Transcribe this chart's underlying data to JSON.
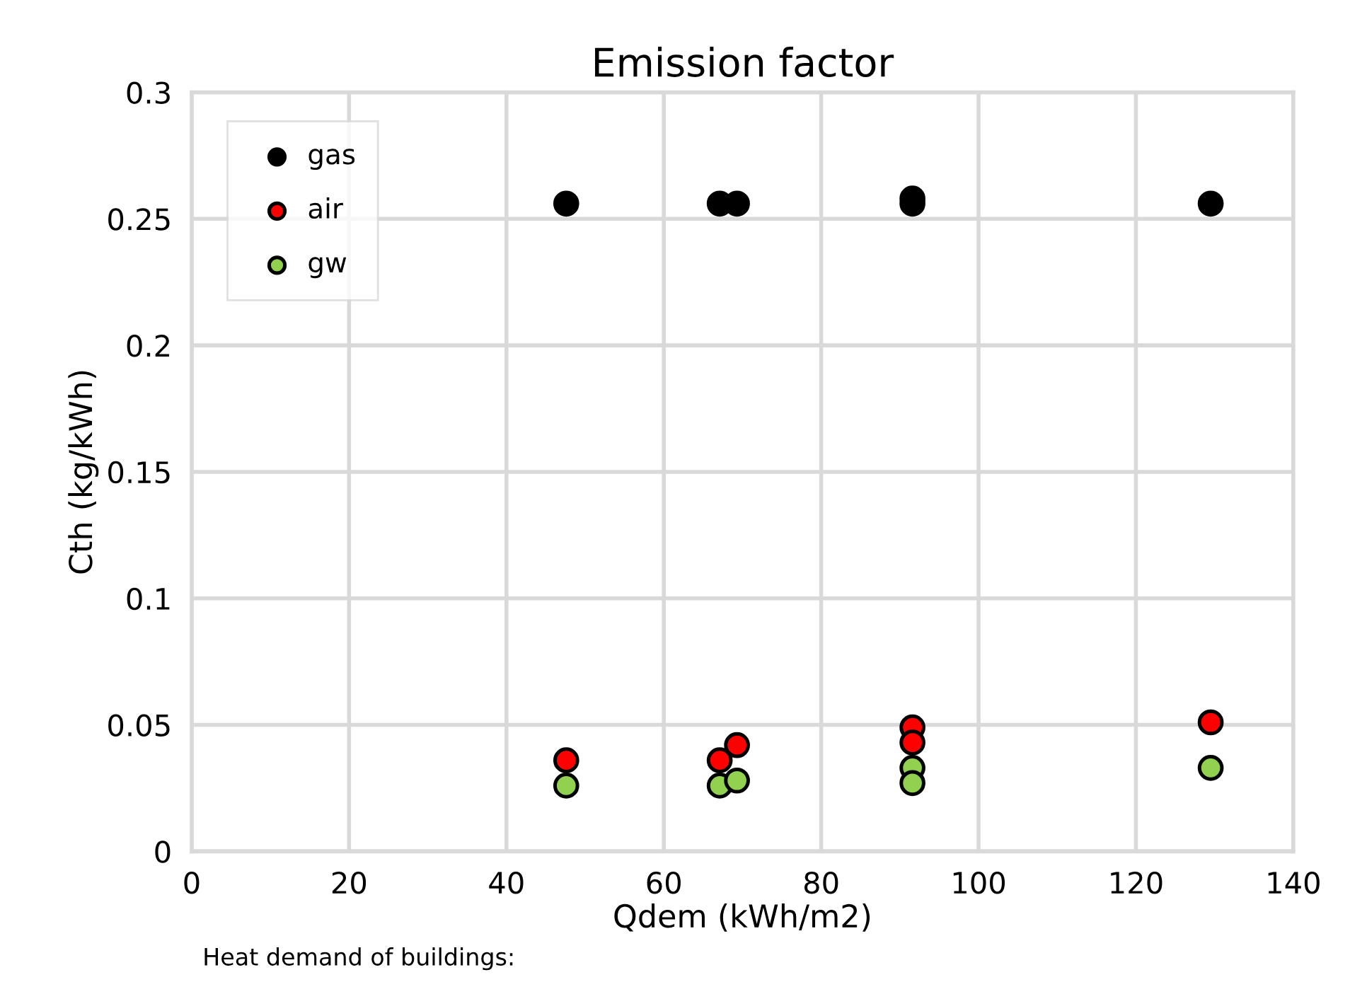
{
  "chart_data": {
    "type": "scatter",
    "title": "Emission factor",
    "xlabel": "Qdem (kWh/m2)",
    "ylabel": "Cth (kg/kWh)",
    "annotations": [
      "Heat demand of buildings:"
    ],
    "x": [
      47.6,
      67.1,
      69.3,
      91.6,
      91.6,
      129.5
    ],
    "series": [
      {
        "name": "gas",
        "color": "#000000",
        "values": [
          0.256,
          0.256,
          0.256,
          0.258,
          0.256,
          0.256
        ]
      },
      {
        "name": "air",
        "color": "#ff0000",
        "values": [
          0.036,
          0.036,
          0.042,
          0.049,
          0.043,
          0.051
        ]
      },
      {
        "name": "gw",
        "color": "#92d050",
        "values": [
          0.026,
          0.026,
          0.028,
          0.033,
          0.027,
          0.033
        ]
      }
    ],
    "xlim": [
      0,
      140
    ],
    "xticks": [
      0,
      20,
      40,
      60,
      80,
      100,
      120,
      140
    ],
    "ylim": [
      0,
      0.3
    ],
    "yticks": [
      0,
      0.05,
      0.1,
      0.15,
      0.2,
      0.25,
      0.3
    ],
    "grid": true,
    "legend": "top left",
    "marker": "circle"
  }
}
